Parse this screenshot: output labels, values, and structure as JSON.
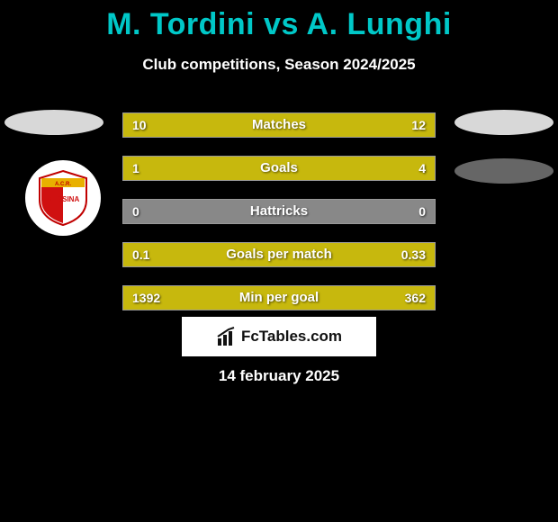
{
  "title": "M. Tordini vs A. Lunghi",
  "title_color": "#00c8c8",
  "subtitle": "Club competitions, Season 2024/2025",
  "date": "14 february 2025",
  "brand": "FcTables.com",
  "colors": {
    "background": "#000000",
    "bar_bg": "#888888",
    "bar_fill": "#c7b80d",
    "bar_border": "#999999",
    "text": "#ffffff",
    "ellipse_light": "#d8d8d8",
    "ellipse_dark": "#666666"
  },
  "club_badge": {
    "side": "left",
    "name": "A.C.R. Messina",
    "colors": {
      "top": "#e8b000",
      "left": "#d01010",
      "right": "#ffffff",
      "text": "#c00000"
    }
  },
  "stats": [
    {
      "label": "Matches",
      "left_val": "10",
      "right_val": "12",
      "left_pct": 45.45,
      "right_pct": 54.55
    },
    {
      "label": "Goals",
      "left_val": "1",
      "right_val": "4",
      "left_pct": 20.0,
      "right_pct": 80.0
    },
    {
      "label": "Hattricks",
      "left_val": "0",
      "right_val": "0",
      "left_pct": 0.0,
      "right_pct": 0.0
    },
    {
      "label": "Goals per match",
      "left_val": "0.1",
      "right_val": "0.33",
      "left_pct": 23.26,
      "right_pct": 76.74
    },
    {
      "label": "Min per goal",
      "left_val": "1392",
      "right_val": "362",
      "left_pct": 79.36,
      "right_pct": 20.64
    }
  ]
}
